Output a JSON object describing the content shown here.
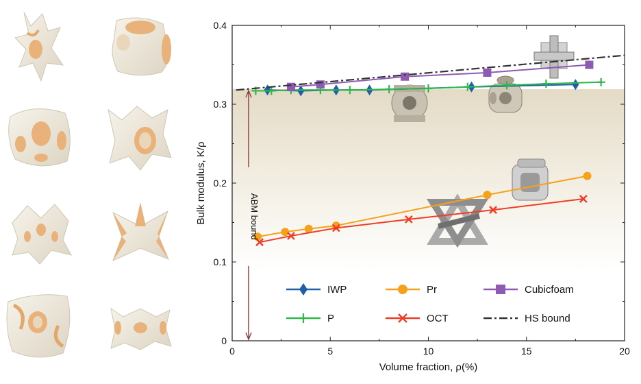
{
  "chart_data": {
    "type": "line",
    "xlabel": "Volume fraction, ρ(%)",
    "ylabel": "Bulk modulus,  K/ρ",
    "xlim": [
      0,
      20
    ],
    "ylim": [
      0,
      0.4
    ],
    "xticks": [
      "0",
      "5",
      "10",
      "15",
      "20"
    ],
    "yticks": [
      "0",
      "0.1",
      "0.2",
      "0.3",
      "0.4"
    ],
    "annotation": "ABM bound",
    "abm_bound": 0.319,
    "series": [
      {
        "name": "IWP",
        "color": "#1f5fa8",
        "marker": "diamond",
        "x": [
          1.8,
          3.5,
          5.3,
          7.0,
          12.2,
          17.5
        ],
        "y": [
          0.318,
          0.317,
          0.318,
          0.318,
          0.322,
          0.325
        ]
      },
      {
        "name": "P",
        "color": "#2db84a",
        "marker": "plus",
        "x": [
          1.2,
          2.0,
          3.0,
          4.5,
          6.0,
          8.0,
          10.0,
          12.0,
          14.0,
          16.0,
          18.8
        ],
        "y": [
          0.317,
          0.317,
          0.318,
          0.318,
          0.318,
          0.319,
          0.32,
          0.322,
          0.324,
          0.326,
          0.328
        ]
      },
      {
        "name": "Cubicfoam",
        "color": "#8e5bb3",
        "marker": "square",
        "x": [
          3.0,
          4.5,
          8.8,
          13.0,
          18.2
        ],
        "y": [
          0.322,
          0.325,
          0.335,
          0.34,
          0.35
        ]
      },
      {
        "name": "Pr",
        "color": "#f5a11c",
        "marker": "circle",
        "x": [
          1.3,
          2.7,
          3.9,
          5.3,
          13.0,
          18.1
        ],
        "y": [
          0.132,
          0.138,
          0.142,
          0.146,
          0.185,
          0.209
        ]
      },
      {
        "name": "OCT",
        "color": "#ef3d24",
        "marker": "x",
        "x": [
          1.4,
          3.0,
          5.3,
          9.0,
          13.3,
          17.9
        ],
        "y": [
          0.125,
          0.133,
          0.143,
          0.154,
          0.166,
          0.18
        ]
      },
      {
        "name": "HS bound",
        "color": "#333333",
        "marker": "none",
        "dash": "dashdot",
        "x": [
          0.2,
          20.0
        ],
        "y": [
          0.318,
          0.362
        ]
      }
    ]
  }
}
